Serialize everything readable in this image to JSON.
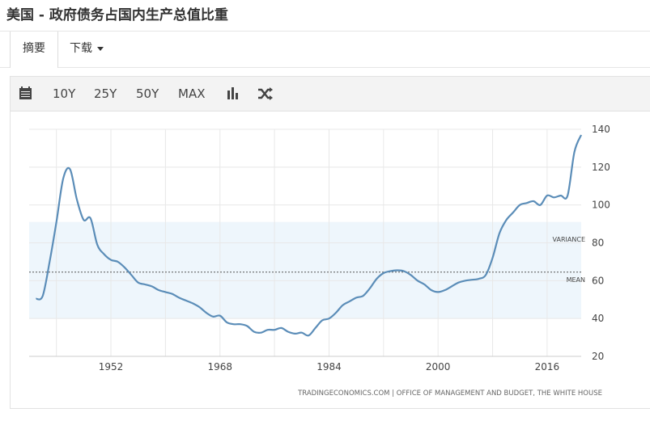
{
  "header": {
    "title": "美国 - 政府债务占国内生产总值比重"
  },
  "tabs": [
    {
      "label": "摘要"
    },
    {
      "label": "下载"
    }
  ],
  "toolbar": {
    "buttons": [
      "10Y",
      "25Y",
      "50Y",
      "MAX"
    ]
  },
  "icons": [
    "calendar-icon",
    "bar-chart-icon",
    "shuffle-icon"
  ],
  "colors": {
    "line": "#5b8db8",
    "band": "#eef6fc"
  },
  "source": "TRADINGECONOMICS.COM  |  OFFICE OF MANAGEMENT AND BUDGET, THE WHITE HOUSE",
  "chart_data": {
    "type": "line",
    "title": "",
    "xlabel": "",
    "ylabel": "",
    "xlim": [
      1940,
      2021
    ],
    "ylim": [
      20,
      140
    ],
    "x_ticks": [
      1952,
      1968,
      1984,
      2000,
      2016
    ],
    "y_ticks": [
      20,
      40,
      60,
      80,
      100,
      120,
      140
    ],
    "band": {
      "label": "VARIANCE",
      "from": 40,
      "to": 91
    },
    "mean": {
      "label": "MEAN",
      "value": 64.5
    },
    "x": [
      1941,
      1942,
      1943,
      1944,
      1945,
      1946,
      1947,
      1948,
      1949,
      1950,
      1951,
      1952,
      1953,
      1954,
      1955,
      1956,
      1957,
      1958,
      1959,
      1960,
      1961,
      1962,
      1963,
      1964,
      1965,
      1966,
      1967,
      1968,
      1969,
      1970,
      1971,
      1972,
      1973,
      1974,
      1975,
      1976,
      1977,
      1978,
      1979,
      1980,
      1981,
      1982,
      1983,
      1984,
      1985,
      1986,
      1987,
      1988,
      1989,
      1990,
      1991,
      1992,
      1993,
      1994,
      1995,
      1996,
      1997,
      1998,
      1999,
      2000,
      2001,
      2002,
      2003,
      2004,
      2005,
      2006,
      2007,
      2008,
      2009,
      2010,
      2011,
      2012,
      2013,
      2014,
      2015,
      2016,
      2017,
      2018,
      2019,
      2020,
      2021
    ],
    "values": [
      50.4,
      52,
      70,
      91,
      114,
      118.9,
      103,
      92.1,
      93,
      79,
      74,
      71,
      70,
      67,
      63,
      59,
      58,
      57,
      55,
      54,
      53,
      51,
      49.5,
      48,
      46,
      43,
      41,
      41.5,
      38,
      37,
      37,
      36,
      33,
      32.5,
      34,
      34,
      35,
      33,
      32,
      32.5,
      31,
      35,
      39,
      40,
      43,
      47,
      49,
      51,
      52,
      56,
      61,
      64,
      65,
      65.5,
      65,
      63,
      60,
      58,
      55,
      54,
      55,
      57,
      59,
      60,
      60.5,
      61,
      63,
      72,
      85,
      92,
      96,
      100,
      101,
      102,
      100,
      105,
      104,
      105,
      105,
      128,
      137
    ]
  }
}
